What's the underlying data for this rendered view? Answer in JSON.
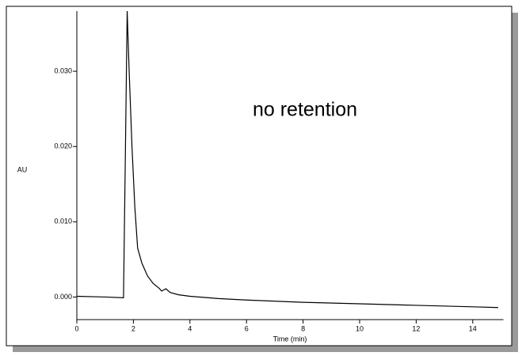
{
  "chart_data": {
    "type": "line",
    "xlabel": "Time (min)",
    "ylabel": "AU",
    "annotation": "no retention",
    "annotation_color": "#e8401c",
    "color": "#000000",
    "x": [
      0,
      1.0,
      1.65,
      1.72,
      1.78,
      1.85,
      1.95,
      2.05,
      2.15,
      2.3,
      2.5,
      2.7,
      2.9,
      3.0,
      3.15,
      3.3,
      3.6,
      4,
      5,
      6,
      8,
      10,
      12,
      14,
      14.9
    ],
    "values": [
      0.0001,
      0.0,
      -0.0001,
      0.02,
      0.038,
      0.03,
      0.02,
      0.012,
      0.0065,
      0.0045,
      0.0028,
      0.0018,
      0.0012,
      0.0008,
      0.0011,
      0.0006,
      0.0003,
      0.0001,
      -0.0002,
      -0.0004,
      -0.0007,
      -0.0009,
      -0.0011,
      -0.0013,
      -0.0014
    ],
    "xlim": [
      0,
      15
    ],
    "xticks": [
      0,
      2,
      4,
      6,
      8,
      10,
      12,
      14
    ],
    "ylim": [
      -0.003,
      0.038
    ],
    "yticks": [
      {
        "value": 0,
        "label": "0.000"
      },
      {
        "value": 0.01,
        "label": "0.010"
      },
      {
        "value": 0.02,
        "label": "0.020"
      },
      {
        "value": 0.03,
        "label": "0.030"
      }
    ]
  }
}
